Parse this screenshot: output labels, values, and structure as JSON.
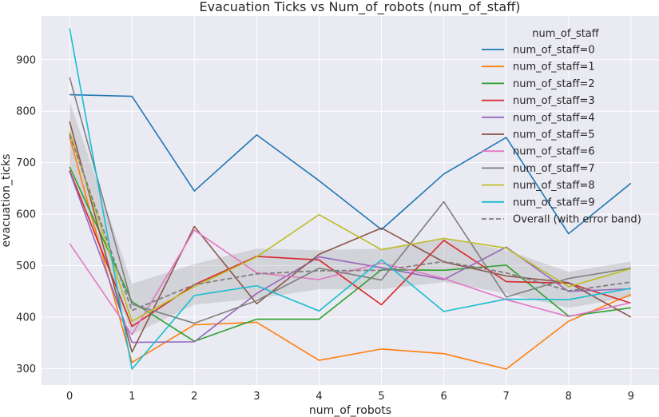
{
  "chart_data": {
    "type": "line",
    "title": "Evacuation Ticks vs Num_of_robots (num_of_staff)",
    "xlabel": "num_of_robots",
    "ylabel": "evacuation_ticks",
    "x": [
      0,
      1,
      2,
      3,
      4,
      5,
      6,
      7,
      8,
      9
    ],
    "xlim": [
      -0.45,
      9.45
    ],
    "ylim": [
      268,
      985
    ],
    "yticks": [
      300,
      400,
      500,
      600,
      700,
      800,
      900
    ],
    "grid": true,
    "legend": {
      "title": "num_of_staff",
      "placement": "top-right"
    },
    "series": [
      {
        "name": "num_of_staff=0",
        "color": "#1f77b4",
        "values": [
          832,
          829,
          645,
          754,
          665,
          570,
          678,
          749,
          562,
          660
        ]
      },
      {
        "name": "num_of_staff=1",
        "color": "#ff7f0e",
        "values": [
          750,
          312,
          385,
          390,
          316,
          338,
          329,
          299,
          392,
          444
        ]
      },
      {
        "name": "num_of_staff=2",
        "color": "#2ca02c",
        "values": [
          692,
          430,
          353,
          396,
          396,
          492,
          491,
          501,
          402,
          418
        ]
      },
      {
        "name": "num_of_staff=3",
        "color": "#d62728",
        "values": [
          685,
          382,
          463,
          518,
          511,
          424,
          549,
          469,
          466,
          427
        ]
      },
      {
        "name": "num_of_staff=4",
        "color": "#9467bd",
        "values": [
          683,
          351,
          352,
          446,
          517,
          496,
          473,
          536,
          450,
          455
        ]
      },
      {
        "name": "num_of_staff=5",
        "color": "#8c564b",
        "values": [
          780,
          332,
          576,
          426,
          522,
          573,
          507,
          480,
          467,
          400
        ]
      },
      {
        "name": "num_of_staff=6",
        "color": "#e377c2",
        "values": [
          543,
          366,
          569,
          486,
          473,
          505,
          475,
          434,
          401,
          428
        ]
      },
      {
        "name": "num_of_staff=7",
        "color": "#7f7f7f",
        "values": [
          866,
          425,
          388,
          432,
          495,
          472,
          624,
          439,
          475,
          495
        ]
      },
      {
        "name": "num_of_staff=8",
        "color": "#bcbd22",
        "values": [
          760,
          392,
          459,
          517,
          599,
          531,
          553,
          534,
          459,
          494
        ]
      },
      {
        "name": "num_of_staff=9",
        "color": "#17becf",
        "values": [
          961,
          299,
          442,
          461,
          412,
          511,
          411,
          435,
          434,
          456
        ]
      },
      {
        "name": "Overall (with error band)",
        "color": "#7f7f7f",
        "dashed": true,
        "values": [
          755,
          413,
          463,
          484,
          490,
          491,
          508,
          486,
          451,
          468
        ],
        "band_low": [
          692,
          366,
          424,
          436,
          454,
          454,
          468,
          446,
          418,
          439
        ],
        "band_high": [
          820,
          465,
          503,
          533,
          530,
          533,
          553,
          530,
          488,
          508
        ]
      }
    ]
  }
}
